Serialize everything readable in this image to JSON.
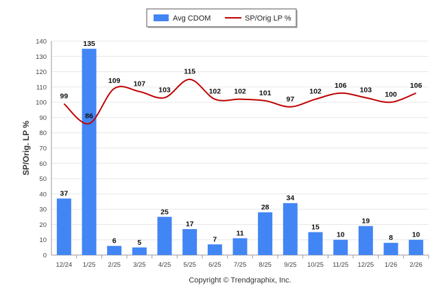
{
  "chart_data": {
    "type": "bar",
    "ylabel": "SP/Orig. LP %",
    "xlabel": "",
    "title": "",
    "ylim": [
      0,
      140
    ],
    "yticks": [
      0,
      10,
      20,
      30,
      40,
      50,
      60,
      70,
      80,
      90,
      100,
      110,
      120,
      130,
      140
    ],
    "grid": true,
    "legend_position": "top-center",
    "categories": [
      "12/24",
      "1/25",
      "2/25",
      "3/25",
      "4/25",
      "5/25",
      "6/25",
      "7/25",
      "8/25",
      "9/25",
      "10/25",
      "11/25",
      "12/25",
      "1/26",
      "2/26"
    ],
    "series": [
      {
        "name": "Avg CDOM",
        "type": "bar",
        "color": "#4285f4",
        "values": [
          37,
          135,
          6,
          5,
          25,
          17,
          7,
          11,
          28,
          34,
          15,
          10,
          19,
          8,
          10
        ]
      },
      {
        "name": "SP/Orig LP %",
        "type": "line",
        "color": "#c00000",
        "values": [
          99,
          86,
          109,
          107,
          103,
          115,
          102,
          102,
          101,
          97,
          102,
          106,
          103,
          100,
          106
        ]
      }
    ],
    "footer": "Copyright © Trendgraphix, Inc."
  }
}
